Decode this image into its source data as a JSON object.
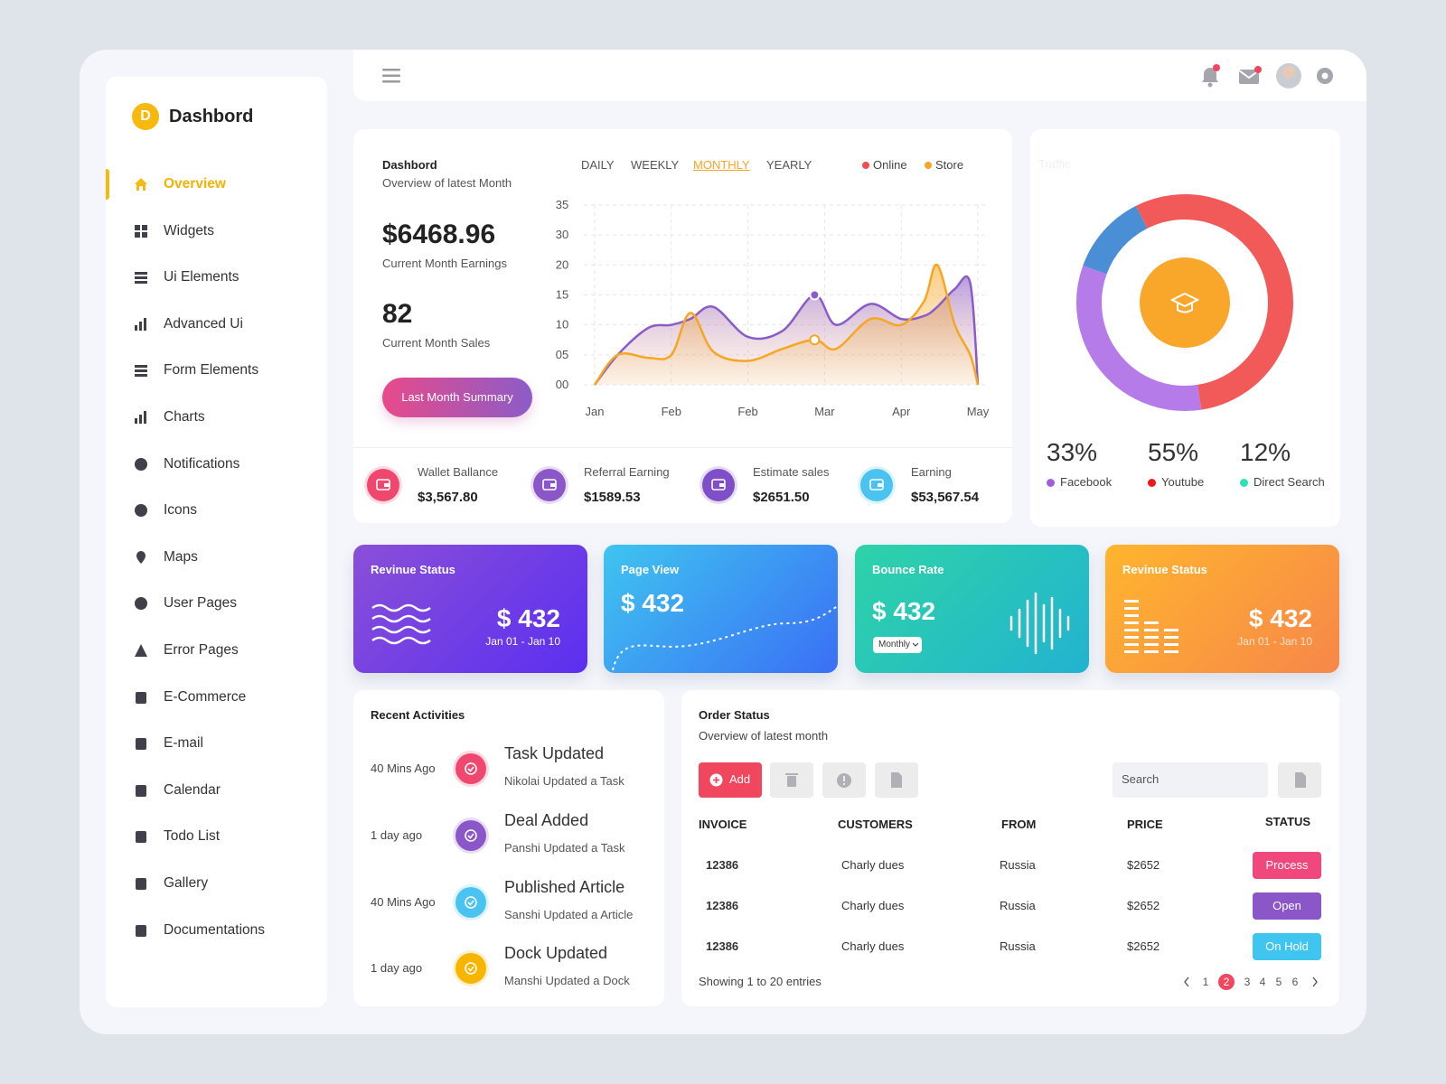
{
  "sidebar": {
    "logo": "D",
    "brand": "Dashbord",
    "menu": [
      "Overview",
      "Widgets",
      "Ui Elements",
      "Advanced Ui",
      "Form Elements",
      "Charts",
      "Notifications",
      "Icons",
      "Maps",
      "User Pages",
      "Error Pages",
      "E-Commerce",
      "E-mail",
      "Calendar",
      "Todo List",
      "Gallery",
      "Documentations"
    ],
    "active": 0
  },
  "overview": {
    "title": "Dashbord",
    "subtitle": "Overview of latest Month",
    "earnings": "$6468.96",
    "earnings_label": "Current Month Earnings",
    "sales": 82,
    "sales_label": "Current Month Sales",
    "button": "Last Month Summary",
    "tabs": [
      "DAILY",
      "WEEKLY",
      "MONTHLY",
      "YEARLY"
    ],
    "active_tab": 2
  },
  "stats": [
    {
      "label": "Wallet Ballance",
      "value": "$3,567.80",
      "color": "#f0476f"
    },
    {
      "label": "Referral Earning",
      "value": "$1589.53",
      "color": "#8b57c8"
    },
    {
      "label": "Estimate sales",
      "value": "$2651.50",
      "color": "#7e4fc6"
    },
    {
      "label": "Earning",
      "value": "$53,567.54",
      "color": "#4bc3f0"
    }
  ],
  "chart_data": [
    {
      "type": "line",
      "x": [
        0,
        0.3,
        0.7,
        1.0,
        1.25,
        1.55,
        2.0,
        2.45,
        2.87,
        3.15,
        3.6,
        4.0,
        4.3,
        4.47,
        4.7,
        4.9,
        5
      ],
      "xlim": [
        0,
        5
      ],
      "xticks": [
        {
          "value": 0,
          "label": "Jan"
        },
        {
          "value": 1,
          "label": "Feb"
        },
        {
          "value": 2,
          "label": "Feb"
        },
        {
          "value": 3,
          "label": "Mar"
        },
        {
          "value": 4,
          "label": "Apr"
        },
        {
          "value": 5,
          "label": "May"
        }
      ],
      "ylim": [
        0,
        30
      ],
      "yticks": [
        {
          "value": 0,
          "label": "00"
        },
        {
          "value": 5,
          "label": "05"
        },
        10,
        15,
        20,
        {
          "value": 25,
          "label": "30"
        },
        {
          "value": 30,
          "label": "35"
        }
      ],
      "grid": true,
      "series": [
        {
          "name": "Online",
          "color": "#8a5cc8",
          "legend_color": "#f04e4e",
          "values": [
            0,
            5,
            9.5,
            10,
            11,
            13,
            8,
            9,
            15,
            10,
            13.5,
            11,
            11.5,
            13,
            16,
            17,
            0
          ]
        },
        {
          "name": "Store",
          "color": "#f5a623",
          "legend_color": "#f5a623",
          "values": [
            0,
            5,
            4.5,
            5,
            12,
            5.5,
            4,
            6,
            7.5,
            6,
            11,
            10,
            14,
            20,
            10,
            5,
            0
          ]
        }
      ]
    },
    {
      "type": "pie",
      "title": "Traffic",
      "categories": [
        "Facebook",
        "Youtube",
        "Direct Search"
      ],
      "values": [
        33,
        55,
        12
      ],
      "value_labels": [
        "33%",
        "55%",
        "12%"
      ],
      "colors": [
        "#b57be8",
        "#f25a5a",
        "#4a8fd6"
      ],
      "legend_colors": [
        "#a35ee0",
        "#f01818",
        "#2fe0b5"
      ]
    }
  ],
  "cards": [
    {
      "title": "Revinue Status",
      "value": "$ 432",
      "date": "Jan 01 - Jan 10"
    },
    {
      "title": "Page View",
      "value": "$ 432"
    },
    {
      "title": "Bounce Rate",
      "value": "$ 432",
      "dropdown": "Monthly"
    },
    {
      "title": "Revinue Status",
      "value": "$ 432",
      "date": "Jan 01 - Jan 10"
    }
  ],
  "activities": {
    "title": "Recent Activities",
    "items": [
      {
        "time": "40 Mins Ago",
        "title": "Task Updated",
        "subtitle": "Nikolai Updated a Task",
        "color": "#f0476f"
      },
      {
        "time": "1 day ago",
        "title": "Deal Added",
        "subtitle": "Panshi Updated a Task",
        "color": "#8b57c8"
      },
      {
        "time": "40 Mins Ago",
        "title": "Published Article",
        "subtitle": "Sanshi Updated a Article",
        "color": "#4bc3f0"
      },
      {
        "time": "1 day ago",
        "title": "Dock Updated",
        "subtitle": "Manshi Updated a Dock",
        "color": "#f7b500"
      }
    ]
  },
  "orders": {
    "title": "Order Status",
    "subtitle": "Overview of latest month",
    "add": "Add",
    "search": "Search",
    "columns": [
      "INVOICE",
      "CUSTOMERS",
      "FROM",
      "PRICE",
      "STATUS"
    ],
    "rows": [
      {
        "invoice": 12386,
        "customer": "Charly dues",
        "from": "Russia",
        "price": "$2652",
        "status": "Process",
        "color": "#f0477d"
      },
      {
        "invoice": 12386,
        "customer": "Charly dues",
        "from": "Russia",
        "price": "$2652",
        "status": "Open",
        "color": "#8b57c8"
      },
      {
        "invoice": 12386,
        "customer": "Charly dues",
        "from": "Russia",
        "price": "$2652",
        "status": "On Hold",
        "color": "#3fc5f0"
      }
    ],
    "footer": "Showing 1 to 20 entries",
    "pages": [
      1,
      2,
      3,
      4,
      5,
      6
    ],
    "current_page": 2
  }
}
